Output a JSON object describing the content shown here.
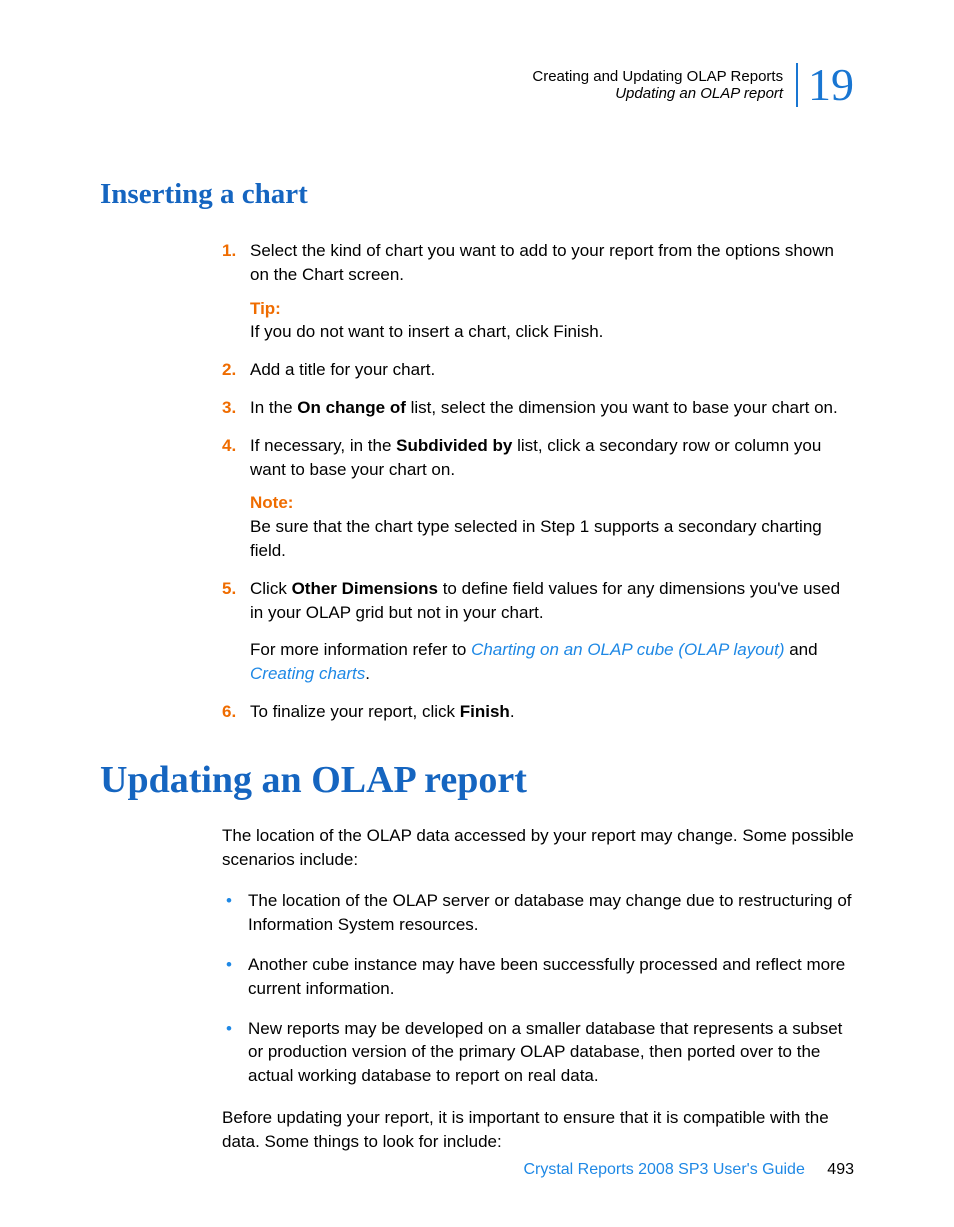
{
  "header": {
    "line1": "Creating and Updating OLAP Reports",
    "line2": "Updating an OLAP report",
    "chapter_number": "19"
  },
  "section1": {
    "title": "Inserting a chart",
    "steps": [
      {
        "num": "1.",
        "text_before": "Select the kind of chart you want to add to your report from the options shown on the Chart screen.",
        "callout_label": "Tip:",
        "callout_body": "If you do not want to insert a chart, click Finish."
      },
      {
        "num": "2.",
        "text_before": "Add a title for your chart."
      },
      {
        "num": "3.",
        "prefix": "In the ",
        "bold1": "On change of",
        "suffix": " list, select the dimension you want to base your chart on."
      },
      {
        "num": "4.",
        "prefix": "If necessary, in the ",
        "bold1": "Subdivided by",
        "suffix": " list, click a secondary row or column you want to base your chart on.",
        "callout_label": "Note:",
        "callout_body": "Be sure that the chart type selected in Step 1 supports a secondary charting field."
      },
      {
        "num": "5.",
        "prefix": "Click ",
        "bold1": "Other Dimensions",
        "suffix": " to define field values for any dimensions you've used in your OLAP grid but not in your chart.",
        "para_prefix": "For more information refer to ",
        "link1": "Charting on an OLAP cube (OLAP layout)",
        "para_mid": " and ",
        "link2": "Creating charts",
        "para_suffix": "."
      },
      {
        "num": "6.",
        "prefix": "To finalize your report, click ",
        "bold1": "Finish",
        "suffix": "."
      }
    ]
  },
  "section2": {
    "title": "Updating an OLAP report",
    "intro": "The location of the OLAP data accessed by your report may change. Some possible scenarios include:",
    "bullets": [
      "The location of the OLAP server or database may change due to restructuring of Information System resources.",
      "Another cube instance may have been successfully processed and reflect more current information.",
      "New reports may be developed on a smaller database that represents a subset or production version of the primary OLAP database, then ported over to the actual working database to report on real data."
    ],
    "closing": "Before updating your report, it is important to ensure that it is compatible with the data. Some things to look for include:"
  },
  "footer": {
    "title": "Crystal Reports 2008 SP3 User's Guide",
    "page": "493"
  }
}
